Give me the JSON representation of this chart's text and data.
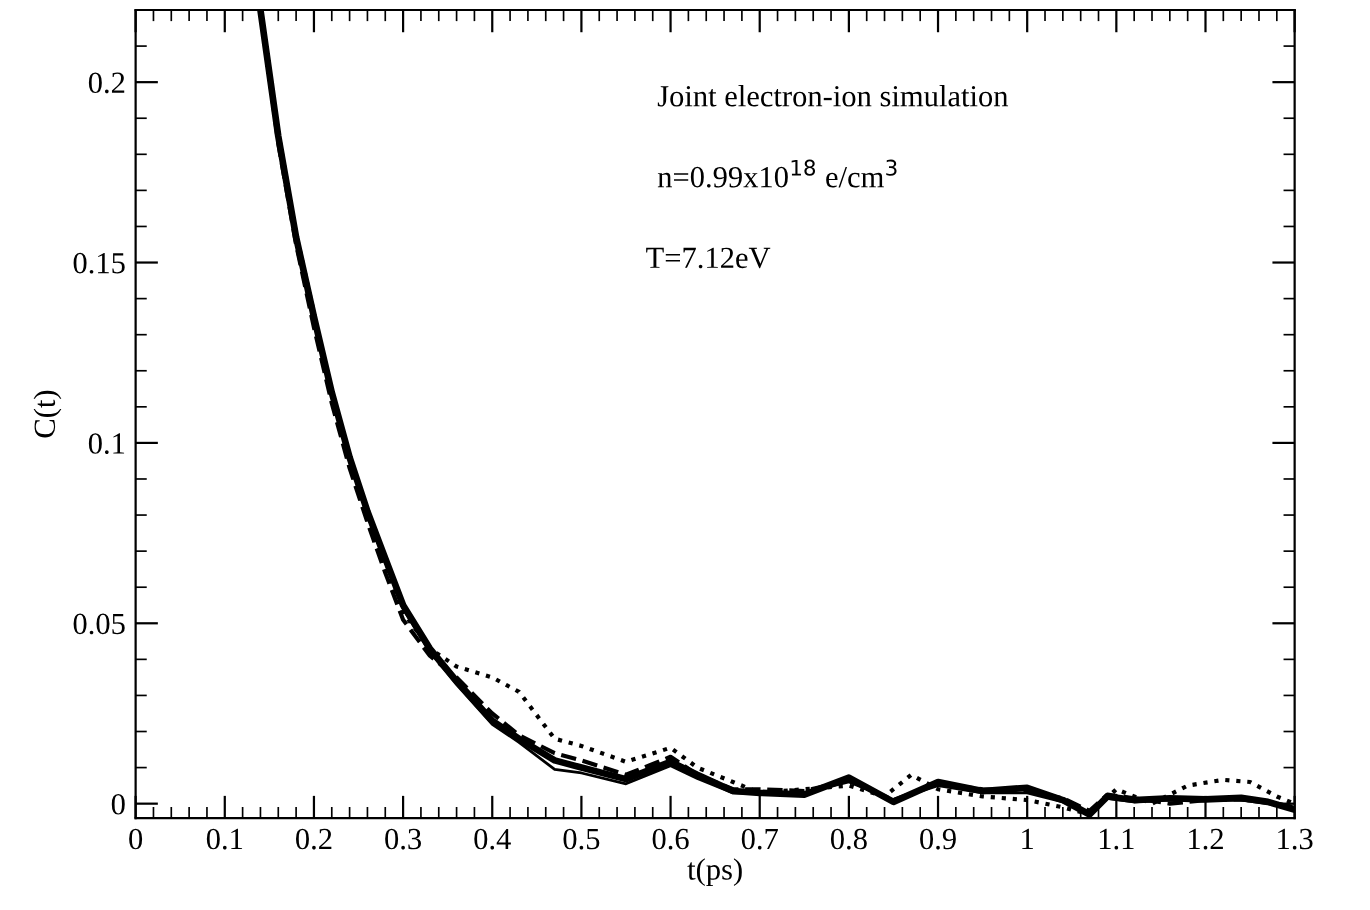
{
  "chart_data": {
    "type": "line",
    "xlabel": "t(ps)",
    "ylabel": "C(t)",
    "annotations": [
      "Joint electron-ion simulation",
      "n=0.99x10$^{18}$ e/cm$^{3}$",
      "T=7.12eV"
    ],
    "xlim": [
      0,
      1.3
    ],
    "ylim": [
      -0.004,
      0.22
    ],
    "xticks": [
      0,
      0.1,
      0.2,
      0.3,
      0.4,
      0.5,
      0.6,
      0.7,
      0.8,
      0.9,
      1,
      1.1,
      1.2,
      1.3
    ],
    "yticks": [
      0,
      0.05,
      0.1,
      0.15,
      0.2
    ],
    "grid": false,
    "legend": false,
    "series": [
      {
        "color": "#000000",
        "line_style": "solid",
        "x": [
          0.14,
          0.16,
          0.18,
          0.2,
          0.22,
          0.24,
          0.26,
          0.28,
          0.3,
          0.33,
          0.36,
          0.4,
          0.43,
          0.47,
          0.5,
          0.55,
          0.6,
          0.63,
          0.67,
          0.7,
          0.75,
          0.8,
          0.85,
          0.9,
          0.95,
          1.0,
          1.04,
          1.07,
          1.09,
          1.12,
          1.16,
          1.2,
          1.24,
          1.27,
          1.3
        ],
        "values": [
          0.22,
          0.185,
          0.157,
          0.135,
          0.114,
          0.096,
          0.081,
          0.068,
          0.055,
          0.043,
          0.034,
          0.023,
          0.018,
          0.012,
          0.01,
          0.0068,
          0.0116,
          0.008,
          0.0035,
          0.003,
          0.0025,
          0.0072,
          0.0005,
          0.006,
          0.0035,
          0.0044,
          0.001,
          -0.003,
          0.002,
          0.001,
          0.0015,
          0.0012,
          0.0016,
          0.0005,
          -0.0017
        ]
      },
      {
        "color": "#000000",
        "line_style": "solid",
        "x": [
          0.14,
          0.16,
          0.18,
          0.2,
          0.22,
          0.24,
          0.26,
          0.28,
          0.3,
          0.33,
          0.36,
          0.4,
          0.43,
          0.47,
          0.5,
          0.55,
          0.6,
          0.63,
          0.67,
          0.7,
          0.75,
          0.8,
          0.85,
          0.9,
          0.95,
          1.0,
          1.04,
          1.07,
          1.09,
          1.12,
          1.16,
          1.2,
          1.24,
          1.27,
          1.3
        ],
        "values": [
          0.22,
          0.184,
          0.156,
          0.134,
          0.113,
          0.095,
          0.08,
          0.067,
          0.054,
          0.042,
          0.033,
          0.022,
          0.017,
          0.0095,
          0.0085,
          0.0055,
          0.0105,
          0.007,
          0.003,
          0.0028,
          0.003,
          0.006,
          0.001,
          0.005,
          0.003,
          0.003,
          0.0005,
          -0.0025,
          0.0015,
          0.0005,
          0.001,
          0.001,
          0.001,
          0.0,
          -0.0015
        ]
      },
      {
        "color": "#000000",
        "line_style": "dashed",
        "x": [
          0.14,
          0.16,
          0.18,
          0.2,
          0.22,
          0.24,
          0.26,
          0.28,
          0.3,
          0.33,
          0.36,
          0.4,
          0.43,
          0.47,
          0.5,
          0.55,
          0.6,
          0.63,
          0.67,
          0.7,
          0.75,
          0.8,
          0.85,
          0.9,
          0.95,
          1.0,
          1.04,
          1.07,
          1.09,
          1.12,
          1.16,
          1.2,
          1.24,
          1.27,
          1.3
        ],
        "values": [
          0.22,
          0.183,
          0.155,
          0.132,
          0.111,
          0.093,
          0.078,
          0.064,
          0.051,
          0.041,
          0.035,
          0.025,
          0.019,
          0.014,
          0.012,
          0.008,
          0.013,
          0.008,
          0.004,
          0.004,
          0.0035,
          0.0065,
          0.001,
          0.0055,
          0.004,
          0.0035,
          0.0015,
          -0.002,
          0.0025,
          0.0015,
          0.0,
          0.001,
          0.0012,
          0.0005,
          -0.001
        ]
      },
      {
        "color": "#000000",
        "line_style": "dotted",
        "x": [
          0.14,
          0.16,
          0.18,
          0.2,
          0.22,
          0.24,
          0.26,
          0.28,
          0.3,
          0.33,
          0.36,
          0.4,
          0.43,
          0.47,
          0.5,
          0.55,
          0.6,
          0.63,
          0.67,
          0.7,
          0.75,
          0.8,
          0.84,
          0.87,
          0.9,
          0.95,
          1.0,
          1.04,
          1.07,
          1.1,
          1.14,
          1.18,
          1.22,
          1.25,
          1.28,
          1.3
        ],
        "values": [
          0.22,
          0.186,
          0.158,
          0.136,
          0.112,
          0.094,
          0.079,
          0.066,
          0.053,
          0.043,
          0.038,
          0.035,
          0.031,
          0.018,
          0.016,
          0.0116,
          0.0155,
          0.01,
          0.006,
          0.003,
          0.004,
          0.005,
          0.002,
          0.008,
          0.004,
          0.002,
          0.001,
          -0.001,
          -0.003,
          0.004,
          0.0,
          0.005,
          0.0066,
          0.006,
          0.002,
          0.0
        ]
      }
    ]
  }
}
